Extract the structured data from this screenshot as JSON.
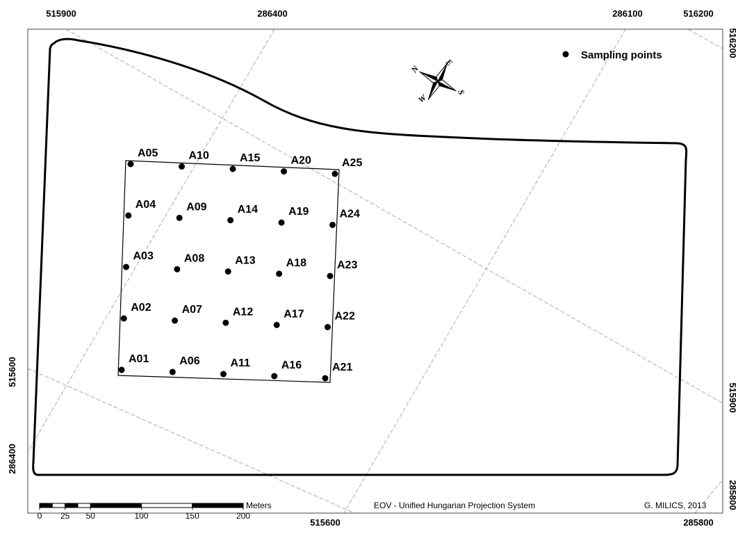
{
  "frame_labels": {
    "top": [
      "515900",
      "286400",
      "286100",
      "516200"
    ],
    "bottom": [
      "515600",
      "285800"
    ],
    "left": [
      "515600",
      "286400"
    ],
    "right": [
      "516200",
      "515900",
      "285800"
    ]
  },
  "legend": {
    "label": "Sampling points"
  },
  "compass": {
    "n": "N",
    "e": "E",
    "s": "S",
    "w": "W"
  },
  "sampling_points": [
    "A01",
    "A02",
    "A03",
    "A04",
    "A05",
    "A06",
    "A07",
    "A08",
    "A09",
    "A10",
    "A11",
    "A12",
    "A13",
    "A14",
    "A15",
    "A16",
    "A17",
    "A18",
    "A19",
    "A20",
    "A21",
    "A22",
    "A23",
    "A24",
    "A25"
  ],
  "scale_bar": {
    "unit": "Meters",
    "ticks": [
      0,
      25,
      50,
      100,
      150,
      200
    ]
  },
  "footer": {
    "projection": "EOV - Unified Hungarian Projection System",
    "author": "G. MILICS, 2013"
  }
}
